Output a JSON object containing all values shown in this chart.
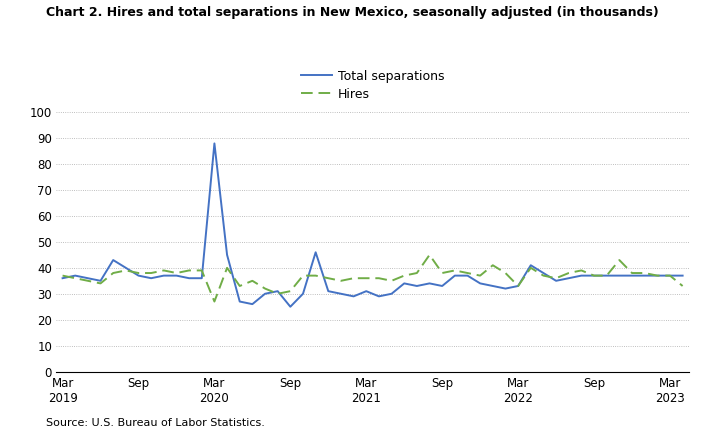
{
  "title": "Chart 2. Hires and total separations in New Mexico, seasonally adjusted (in thousands)",
  "source": "Source: U.S. Bureau of Labor Statistics.",
  "total_separations": [
    36,
    37,
    36,
    35,
    43,
    40,
    37,
    36,
    37,
    37,
    36,
    36,
    88,
    45,
    27,
    26,
    30,
    31,
    25,
    30,
    46,
    31,
    30,
    29,
    31,
    29,
    30,
    34,
    33,
    34,
    33,
    37,
    37,
    34,
    33,
    32,
    33,
    41,
    38,
    35,
    36,
    37,
    37,
    37,
    37,
    37,
    37,
    37,
    37,
    37
  ],
  "hires": [
    37,
    36,
    35,
    34,
    38,
    39,
    38,
    38,
    39,
    38,
    39,
    39,
    27,
    40,
    33,
    35,
    32,
    30,
    31,
    37,
    37,
    36,
    35,
    36,
    36,
    36,
    35,
    37,
    38,
    45,
    38,
    39,
    38,
    37,
    41,
    38,
    33,
    40,
    37,
    36,
    38,
    39,
    37,
    37,
    43,
    38,
    38,
    37,
    37,
    33
  ],
  "x_tick_positions": [
    0,
    6,
    12,
    18,
    24,
    30,
    36,
    42,
    48
  ],
  "x_tick_labels_line1": [
    "Mar",
    "Sep",
    "Mar",
    "Sep",
    "Mar",
    "Sep",
    "Mar",
    "Sep",
    "Mar"
  ],
  "x_tick_years": [
    "2019",
    "",
    "2020",
    "",
    "2021",
    "",
    "2022",
    "",
    "2023"
  ],
  "ylim": [
    0,
    100
  ],
  "yticks": [
    0,
    10,
    20,
    30,
    40,
    50,
    60,
    70,
    80,
    90,
    100
  ],
  "total_sep_color": "#4472C4",
  "hires_color": "#70AD47",
  "legend_label_sep": "Total separations",
  "legend_label_hires": "Hires",
  "background_color": "#FFFFFF",
  "grid_color": "#AAAAAA"
}
